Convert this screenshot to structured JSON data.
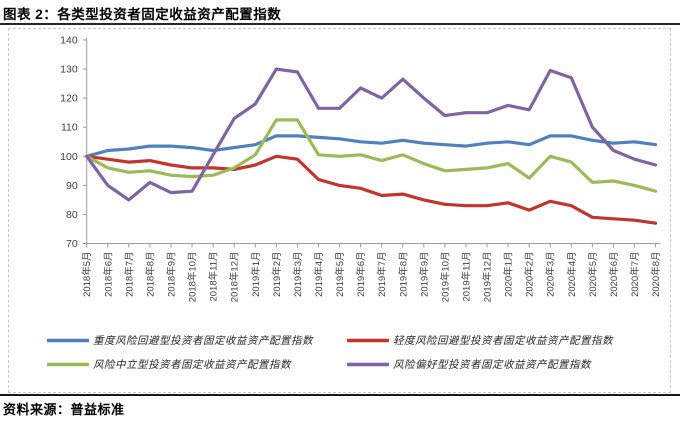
{
  "header": {
    "title": "图表 2：各类型投资者固定收益资产配置指数"
  },
  "footer": {
    "source": "资料来源：普益标准"
  },
  "chart_data": {
    "type": "line",
    "title": "各类型投资者固定收益资产配置指数",
    "xlabel": "",
    "ylabel": "",
    "ylim": [
      70,
      140
    ],
    "ytick_step": 10,
    "grid": false,
    "legend_position": "bottom",
    "x": [
      "2018年5月",
      "2018年6月",
      "2018年7月",
      "2018年8月",
      "2018年9月",
      "2018年10月",
      "2018年11月",
      "2018年12月",
      "2019年1月",
      "2019年2月",
      "2019年3月",
      "2019年4月",
      "2019年5月",
      "2019年6月",
      "2019年7月",
      "2019年8月",
      "2019年9月",
      "2019年10月",
      "2019年11月",
      "2019年12月",
      "2020年1月",
      "2020年2月",
      "2020年3月",
      "2020年4月",
      "2020年5月",
      "2020年6月",
      "2020年7月",
      "2020年8月"
    ],
    "series": [
      {
        "key": "heavy-risk-averse",
        "name": "重度风险回避型投资者固定收益资产配置指数",
        "color": "#4F81BD",
        "values": [
          100,
          102,
          102.5,
          103.5,
          103.5,
          103,
          102,
          103,
          104,
          107,
          107,
          106.5,
          106,
          105,
          104.5,
          105.5,
          104.5,
          104,
          103.5,
          104.5,
          105,
          104,
          107,
          107,
          105.5,
          104.5,
          105,
          104
        ]
      },
      {
        "key": "light-risk-averse",
        "name": "轻度风险回避型投资者固定收益资产配置指数",
        "color": "#C2352E",
        "values": [
          100,
          99,
          98,
          98.5,
          97,
          96,
          96,
          95.5,
          97,
          100,
          99,
          92,
          90,
          89,
          86.5,
          87,
          85,
          83.5,
          83,
          83,
          84,
          81.5,
          84.5,
          83,
          79,
          78.5,
          78,
          77
        ]
      },
      {
        "key": "risk-neutral",
        "name": "风险中立型投资者固定收益资产配置指数",
        "color": "#9BBB59",
        "values": [
          100,
          96,
          94.5,
          95,
          93.5,
          93,
          93.5,
          96,
          100.5,
          112.5,
          112.5,
          100.5,
          100,
          100.5,
          98.5,
          100.5,
          97.5,
          95,
          95.5,
          96,
          97.5,
          92.5,
          100,
          98,
          91,
          91.5,
          90,
          88
        ]
      },
      {
        "key": "risk-preferring",
        "name": "风险偏好型投资者固定收益资产配置指数",
        "color": "#8064A2",
        "values": [
          100,
          90,
          85,
          91,
          87.5,
          88,
          100.5,
          113,
          118,
          130,
          129,
          116.5,
          116.5,
          123.5,
          120,
          126.5,
          120,
          114,
          115,
          115,
          117.5,
          116,
          129.5,
          127,
          110,
          102,
          99,
          97
        ]
      }
    ]
  }
}
